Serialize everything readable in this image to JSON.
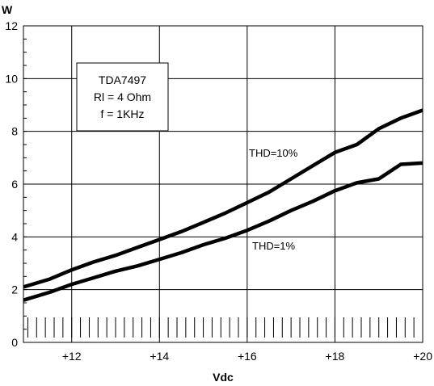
{
  "chart_data": {
    "type": "line",
    "xlabel": "Vdc",
    "ylabel": "W",
    "xlim": [
      10.9,
      20.0
    ],
    "ylim": [
      0,
      12
    ],
    "x_ticks": [
      12,
      14,
      16,
      18,
      20
    ],
    "x_tick_labels": [
      "+12",
      "+14",
      "+16",
      "+18",
      "+20"
    ],
    "y_ticks": [
      0,
      2,
      4,
      6,
      8,
      10,
      12
    ],
    "y_tick_labels": [
      "0",
      "2",
      "4",
      "6",
      "8",
      "10",
      "12"
    ],
    "grid": true,
    "legend_box": [
      "TDA7497",
      "Rl = 4 Ohm",
      "f = 1KHz"
    ],
    "series": [
      {
        "name": "THD=10%",
        "x": [
          10.9,
          11.5,
          12.0,
          12.5,
          13.0,
          13.5,
          14.0,
          14.5,
          15.0,
          15.5,
          16.0,
          16.5,
          17.0,
          17.5,
          18.0,
          18.5,
          19.0,
          19.5,
          20.0
        ],
        "values": [
          2.1,
          2.4,
          2.75,
          3.05,
          3.3,
          3.6,
          3.9,
          4.2,
          4.55,
          4.9,
          5.3,
          5.7,
          6.2,
          6.7,
          7.2,
          7.5,
          8.1,
          8.5,
          8.8
        ]
      },
      {
        "name": "THD=1%",
        "x": [
          10.9,
          11.5,
          12.0,
          12.5,
          13.0,
          13.5,
          14.0,
          14.5,
          15.0,
          15.5,
          16.0,
          16.5,
          17.0,
          17.5,
          18.0,
          18.5,
          19.0,
          19.5,
          20.0
        ],
        "values": [
          1.6,
          1.9,
          2.2,
          2.45,
          2.7,
          2.9,
          3.15,
          3.4,
          3.7,
          3.95,
          4.25,
          4.6,
          5.0,
          5.35,
          5.75,
          6.05,
          6.2,
          6.75,
          6.8
        ]
      }
    ]
  }
}
